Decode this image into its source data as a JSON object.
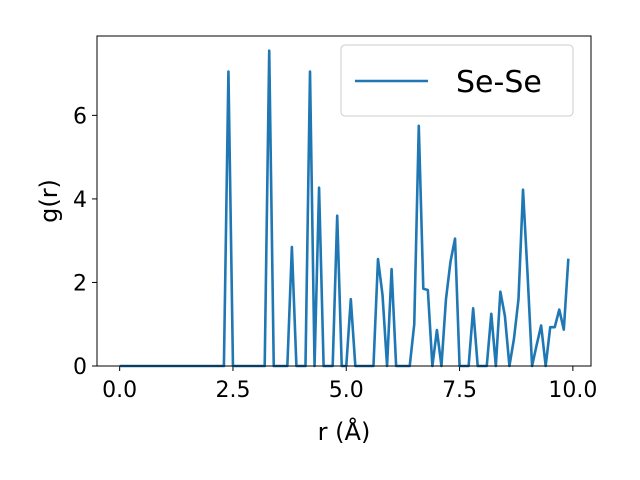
{
  "chart_data": {
    "type": "line",
    "title": "",
    "xlabel": "r (Å)",
    "ylabel": "g(r)",
    "xlim": [
      -0.5,
      10.4
    ],
    "ylim": [
      0,
      7.9
    ],
    "xticks": [
      0.0,
      2.5,
      5.0,
      7.5,
      10.0
    ],
    "xtick_labels": [
      "0.0",
      "2.5",
      "5.0",
      "7.5",
      "10.0"
    ],
    "yticks": [
      0,
      2,
      4,
      6
    ],
    "ytick_labels": [
      "0",
      "2",
      "4",
      "6"
    ],
    "grid": false,
    "legend_position": "top-right",
    "colors": {
      "series": "#1f77b4"
    },
    "series": [
      {
        "name": "Se-Se",
        "x": [
          0.0,
          2.3,
          2.4,
          2.5,
          3.2,
          3.3,
          3.4,
          3.7,
          3.8,
          3.9,
          4.1,
          4.2,
          4.3,
          4.4,
          4.5,
          4.7,
          4.8,
          4.9,
          5.0,
          5.1,
          5.2,
          5.6,
          5.7,
          5.8,
          5.9,
          6.0,
          6.1,
          6.4,
          6.5,
          6.6,
          6.7,
          6.8,
          6.9,
          7.0,
          7.1,
          7.2,
          7.3,
          7.4,
          7.5,
          7.7,
          7.8,
          7.9,
          8.1,
          8.2,
          8.3,
          8.4,
          8.5,
          8.6,
          8.7,
          8.8,
          8.9,
          9.0,
          9.1,
          9.2,
          9.3,
          9.4,
          9.5,
          9.6,
          9.7,
          9.8,
          9.9
        ],
        "y": [
          0,
          0,
          7.05,
          0,
          0,
          7.55,
          0,
          0,
          2.85,
          0,
          0,
          7.05,
          0,
          4.27,
          0,
          0,
          3.6,
          0,
          0,
          1.6,
          0,
          0,
          2.56,
          1.7,
          0,
          2.32,
          0,
          0,
          1.0,
          5.75,
          1.85,
          1.82,
          0,
          0.86,
          0,
          1.6,
          2.5,
          3.05,
          0,
          0,
          1.38,
          0,
          0,
          1.25,
          0,
          1.78,
          1.2,
          0,
          0.65,
          1.6,
          4.22,
          2.2,
          0,
          0.5,
          0.97,
          0,
          0.93,
          0.93,
          1.35,
          0.87,
          2.57
        ]
      }
    ]
  }
}
